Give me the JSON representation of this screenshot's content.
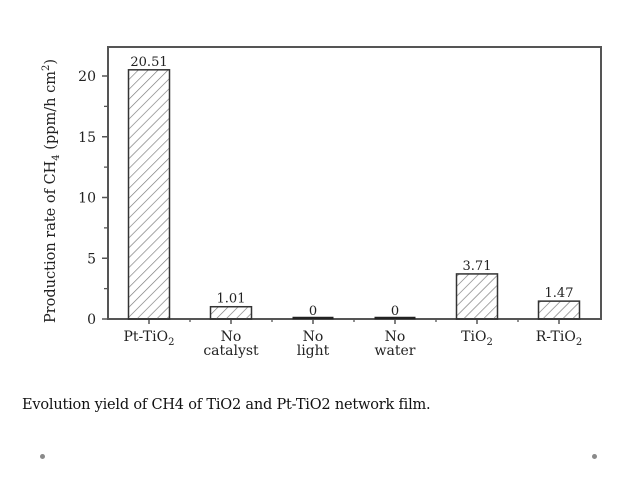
{
  "chart_data": {
    "type": "bar",
    "title": "",
    "categories": [
      "Pt-TiO2",
      "No catalyst",
      "No light",
      "No water",
      "TiO2",
      "R-TiO2"
    ],
    "category_labels": [
      {
        "line1": "Pt-TiO",
        "sub": "2",
        "line2": ""
      },
      {
        "line1": "No",
        "sub": "",
        "line2": "catalyst"
      },
      {
        "line1": "No",
        "sub": "",
        "line2": "light"
      },
      {
        "line1": "No",
        "sub": "",
        "line2": "water"
      },
      {
        "line1": "TiO",
        "sub": "2",
        "line2": ""
      },
      {
        "line1": "R-TiO",
        "sub": "2",
        "line2": ""
      }
    ],
    "values": [
      20.51,
      1.01,
      0,
      0,
      3.71,
      1.47
    ],
    "data_labels": [
      "20.51",
      "1.01",
      "0",
      "0",
      "3.71",
      "1.47"
    ],
    "xlabel": "",
    "ylabel": "Production rate of CH4 (ppm/h cm2)",
    "ylabel_parts": {
      "prefix": "Production rate of CH",
      "sub": "4",
      "mid": " (ppm/h cm",
      "sup": "2",
      "suffix": ")"
    },
    "ylim": [
      0,
      22.5
    ],
    "yticks": [
      0,
      5,
      10,
      15,
      20
    ],
    "yminor_ticks": [
      2.5,
      7.5,
      12.5,
      17.5
    ],
    "grid": false,
    "legend": null,
    "bar_pattern": "diagonal-hatch"
  },
  "caption": "Evolution yield of CH4  of TiO2 and Pt-TiO2 network film.",
  "colors": {
    "axis": "#555555",
    "bar_edge": "#333333",
    "hatch": "#777777",
    "text": "#222222",
    "bullet": "#8a8a8a"
  }
}
